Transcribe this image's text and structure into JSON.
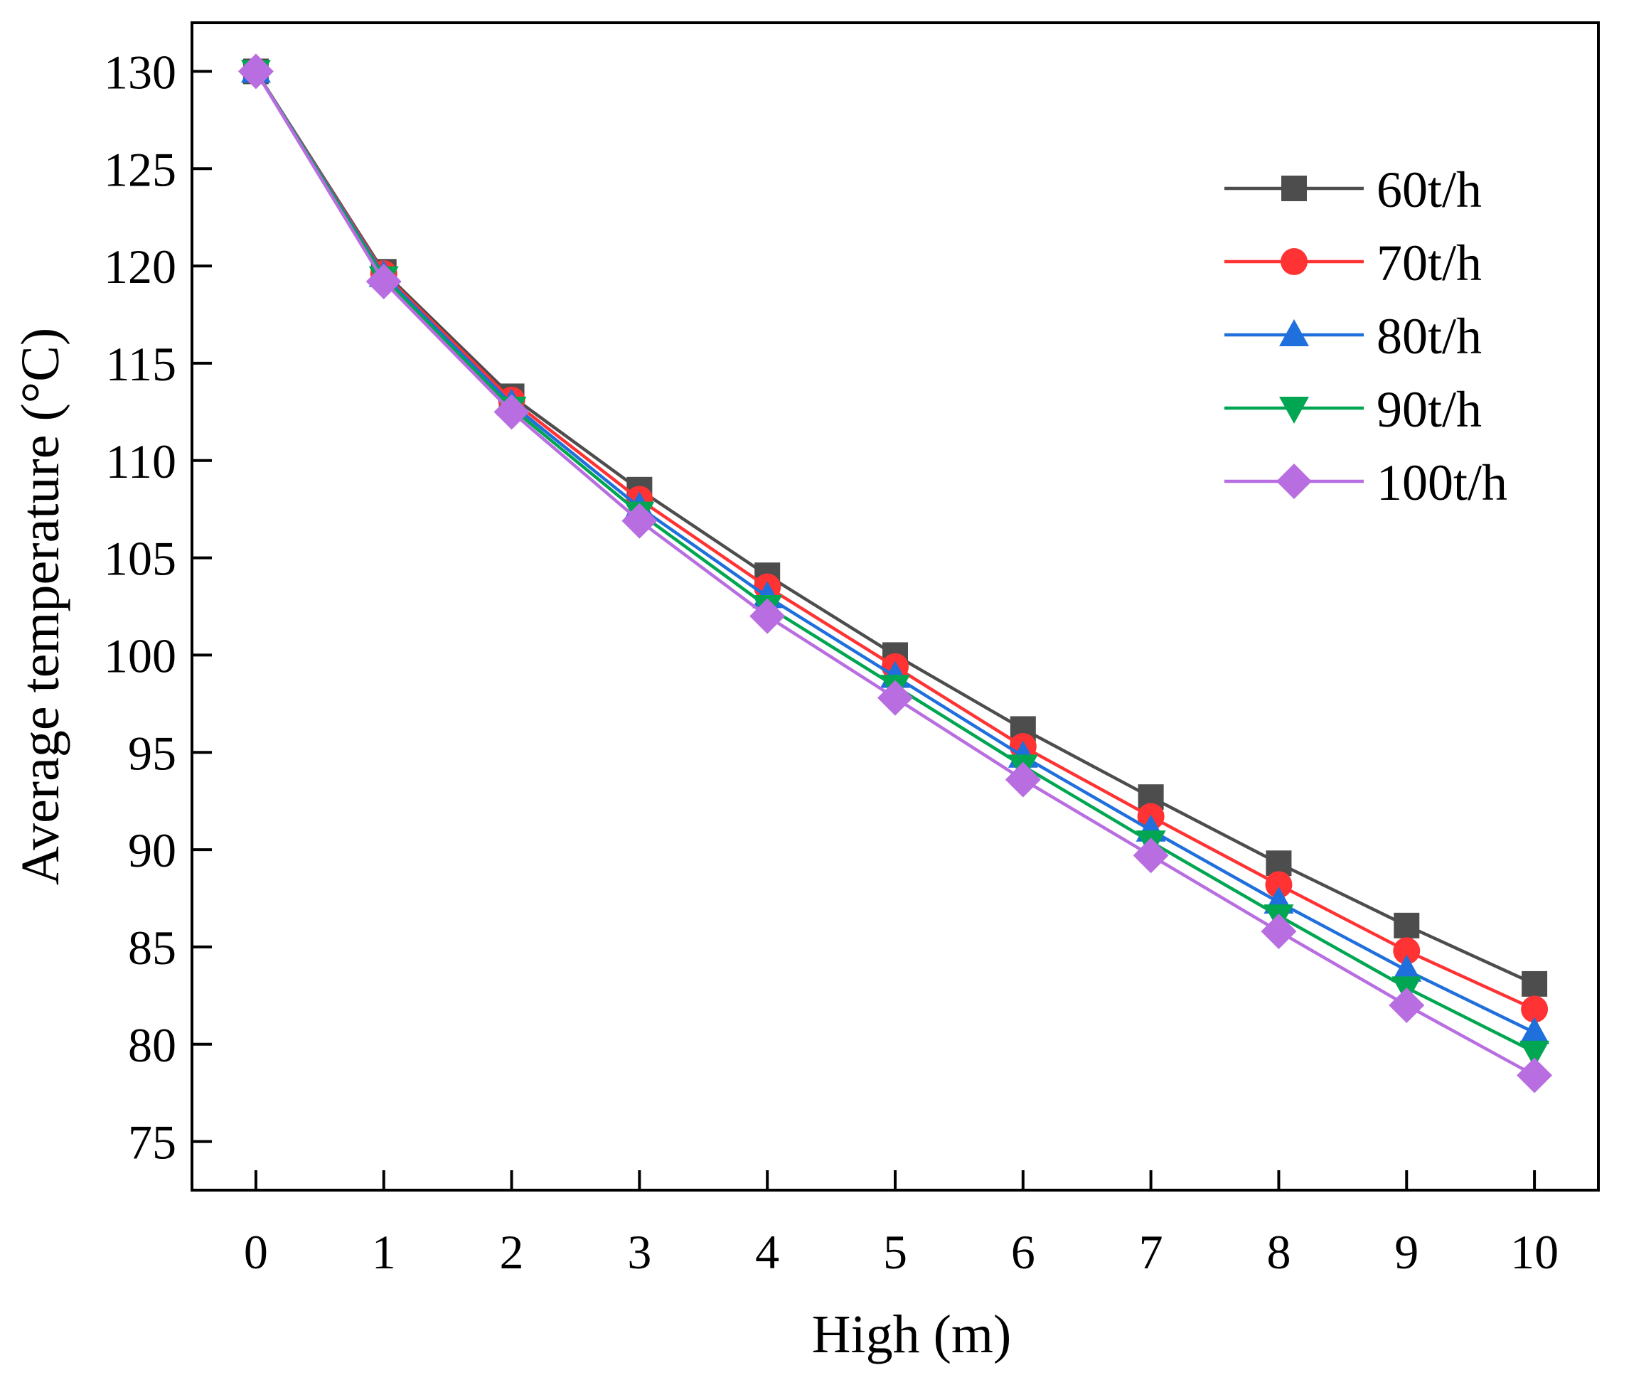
{
  "chart_data": {
    "type": "line",
    "xlabel": "High (m)",
    "ylabel": "Average temperature (°C)",
    "xlim": [
      -0.5,
      10.5
    ],
    "ylim": [
      72.5,
      132.5
    ],
    "x_ticks": [
      0,
      1,
      2,
      3,
      4,
      5,
      6,
      7,
      8,
      9,
      10
    ],
    "y_ticks": [
      75,
      80,
      85,
      90,
      95,
      100,
      105,
      110,
      115,
      120,
      125,
      130
    ],
    "grid": false,
    "legend": "top-right",
    "x": [
      0,
      1,
      2,
      3,
      4,
      5,
      6,
      7,
      8,
      9,
      10
    ],
    "series": [
      {
        "name": "60t/h",
        "color": "#4d4d4d",
        "marker": "square",
        "values": [
          130.0,
          119.7,
          113.3,
          108.5,
          104.1,
          100.0,
          96.2,
          92.7,
          89.3,
          86.1,
          83.1
        ]
      },
      {
        "name": "70t/h",
        "color": "#ff3333",
        "marker": "circle",
        "values": [
          130.0,
          119.6,
          113.1,
          108.0,
          103.5,
          99.4,
          95.3,
          91.7,
          88.2,
          84.8,
          81.8
        ]
      },
      {
        "name": "80t/h",
        "color": "#1f6fdc",
        "marker": "triangle-up",
        "values": [
          130.0,
          119.5,
          112.9,
          107.6,
          103.0,
          98.9,
          94.8,
          91.0,
          87.3,
          83.8,
          80.6
        ]
      },
      {
        "name": "90t/h",
        "color": "#00a651",
        "marker": "triangle-down",
        "values": [
          130.0,
          119.4,
          112.7,
          107.3,
          102.5,
          98.4,
          94.3,
          90.4,
          86.6,
          82.9,
          79.6
        ]
      },
      {
        "name": "100t/h",
        "color": "#b86ee0",
        "marker": "diamond",
        "values": [
          130.0,
          119.2,
          112.5,
          106.9,
          102.0,
          97.8,
          93.6,
          89.7,
          85.8,
          82.0,
          78.4
        ]
      }
    ]
  }
}
